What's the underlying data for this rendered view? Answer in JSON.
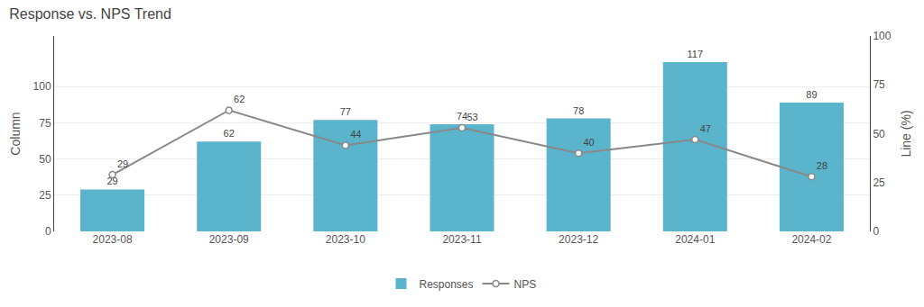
{
  "chart_data": {
    "type": "bar",
    "title": "Response vs. NPS Trend",
    "categories": [
      "2023-08",
      "2023-09",
      "2023-10",
      "2023-11",
      "2023-12",
      "2024-01",
      "2024-02"
    ],
    "series": [
      {
        "name": "Responses",
        "type": "bar",
        "color": "#5ab4cc",
        "values": [
          29,
          62,
          77,
          74,
          78,
          117,
          89
        ]
      },
      {
        "name": "NPS",
        "type": "line",
        "axis": "y2",
        "color": "#888888",
        "marker": "circle",
        "values": [
          29,
          62,
          44,
          53,
          40,
          47,
          28
        ]
      }
    ],
    "ylabel": "Column",
    "y2label": "Line (%)",
    "ylim": [
      0,
      135
    ],
    "yticks": [
      0,
      25,
      50,
      75,
      100
    ],
    "y2lim": [
      0,
      100
    ],
    "y2ticks": [
      0,
      25,
      50,
      75,
      100
    ],
    "grid": true,
    "legend": "bottom",
    "data_labels": true
  }
}
